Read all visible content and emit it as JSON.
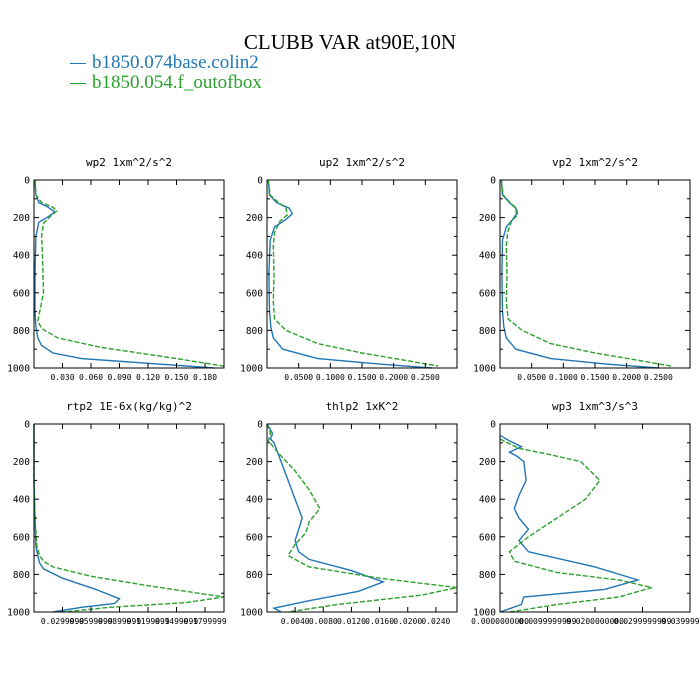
{
  "figure": {
    "title": "CLUBB VAR at90E,10N",
    "legend": [
      {
        "label": "b1850.074base.colin2",
        "color": "#1f77b4",
        "style": "solid"
      },
      {
        "label": "b1850.054.f_outofbox",
        "color": "#2ca02c",
        "style": "dashed"
      }
    ]
  },
  "chart_data": [
    {
      "type": "line",
      "title": "wp2  1xm^2/s^2",
      "ylim": [
        1000,
        0
      ],
      "yticks": [
        0,
        200,
        400,
        600,
        800,
        1000
      ],
      "xlim": [
        0,
        0.2
      ],
      "xticks": [
        0.03,
        0.06,
        0.09,
        0.12,
        0.15,
        0.18
      ],
      "xticklabels": [
        "0.030",
        "0.060",
        "0.090",
        "0.120",
        "0.150",
        "0.180"
      ],
      "series": [
        {
          "name": "b1850.074base.colin2",
          "color": "#1f77b4",
          "dashed": false,
          "x": [
            0.001,
            0.002,
            0.005,
            0.015,
            0.022,
            0.015,
            0.005,
            0.002,
            0.001,
            0.001,
            0.002,
            0.004,
            0.008,
            0.02,
            0.05,
            0.12,
            0.19
          ],
          "y": [
            0,
            80,
            120,
            145,
            170,
            195,
            225,
            300,
            500,
            700,
            780,
            840,
            880,
            920,
            950,
            975,
            1000
          ]
        },
        {
          "name": "b1850.054.f_outofbox",
          "color": "#2ca02c",
          "dashed": true,
          "x": [
            0.001,
            0.002,
            0.008,
            0.02,
            0.024,
            0.018,
            0.01,
            0.008,
            0.009,
            0.01,
            0.006,
            0.004,
            0.008,
            0.025,
            0.07,
            0.15,
            0.2
          ],
          "y": [
            0,
            80,
            120,
            145,
            165,
            190,
            230,
            300,
            400,
            600,
            700,
            750,
            790,
            840,
            890,
            950,
            990
          ]
        }
      ]
    },
    {
      "type": "line",
      "title": "up2  1xm^2/s^2",
      "ylim": [
        1000,
        0
      ],
      "yticks": [
        0,
        200,
        400,
        600,
        800,
        1000
      ],
      "xlim": [
        0,
        0.3
      ],
      "xticks": [
        0.05,
        0.1,
        0.15,
        0.2,
        0.25
      ],
      "xticklabels": [
        "0.0500",
        "0.1000",
        "0.1500",
        "0.2000",
        "0.2500"
      ],
      "series": [
        {
          "name": "b1850.074base.colin2",
          "color": "#1f77b4",
          "dashed": false,
          "x": [
            0.002,
            0.004,
            0.015,
            0.035,
            0.04,
            0.03,
            0.012,
            0.005,
            0.003,
            0.004,
            0.006,
            0.01,
            0.025,
            0.08,
            0.18,
            0.26
          ],
          "y": [
            0,
            80,
            120,
            150,
            180,
            210,
            250,
            320,
            500,
            700,
            780,
            840,
            900,
            950,
            980,
            1000
          ]
        },
        {
          "name": "b1850.054.f_outofbox",
          "color": "#2ca02c",
          "dashed": true,
          "x": [
            0.002,
            0.005,
            0.018,
            0.03,
            0.032,
            0.02,
            0.012,
            0.01,
            0.011,
            0.01,
            0.012,
            0.03,
            0.08,
            0.15,
            0.22,
            0.27
          ],
          "y": [
            0,
            80,
            120,
            150,
            185,
            220,
            280,
            350,
            500,
            650,
            740,
            800,
            870,
            920,
            960,
            990
          ]
        }
      ]
    },
    {
      "type": "line",
      "title": "vp2  1xm^2/s^2",
      "ylim": [
        1000,
        0
      ],
      "yticks": [
        0,
        200,
        400,
        600,
        800,
        1000
      ],
      "xlim": [
        0,
        0.3
      ],
      "xticks": [
        0.05,
        0.1,
        0.15,
        0.2,
        0.25
      ],
      "xticklabels": [
        "0.0500",
        "0.1000",
        "0.1500",
        "0.2000",
        "0.2500"
      ],
      "series": [
        {
          "name": "b1850.074base.colin2",
          "color": "#1f77b4",
          "dashed": false,
          "x": [
            0.002,
            0.004,
            0.015,
            0.025,
            0.026,
            0.02,
            0.01,
            0.004,
            0.003,
            0.004,
            0.006,
            0.01,
            0.025,
            0.08,
            0.17,
            0.25
          ],
          "y": [
            0,
            80,
            120,
            150,
            180,
            210,
            250,
            320,
            500,
            700,
            780,
            840,
            900,
            950,
            980,
            1000
          ]
        },
        {
          "name": "b1850.054.f_outofbox",
          "color": "#2ca02c",
          "dashed": true,
          "x": [
            0.002,
            0.005,
            0.016,
            0.026,
            0.028,
            0.018,
            0.012,
            0.01,
            0.011,
            0.01,
            0.013,
            0.035,
            0.08,
            0.15,
            0.22,
            0.27
          ],
          "y": [
            0,
            80,
            120,
            150,
            185,
            220,
            280,
            350,
            500,
            650,
            740,
            800,
            870,
            920,
            960,
            990
          ]
        }
      ]
    },
    {
      "type": "line",
      "title": "rtp2  1E-6x(kg/kg)^2",
      "ylim": [
        1000,
        0
      ],
      "yticks": [
        0,
        200,
        400,
        600,
        800,
        1000
      ],
      "xlim": [
        0,
        0.2
      ],
      "xticks": [
        0.0299999,
        0.0599999,
        0.0899999,
        0.1199999,
        0.1499999,
        0.1799999
      ],
      "xticklabels": [
        "0.0299999",
        "0.0599999",
        "0.0899999",
        "0.1199999",
        "0.1499999",
        "0.1799999"
      ],
      "series": [
        {
          "name": "b1850.074base.colin2",
          "color": "#1f77b4",
          "dashed": false,
          "x": [
            0.0,
            0.0,
            0.001,
            0.002,
            0.004,
            0.006,
            0.01,
            0.03,
            0.065,
            0.09,
            0.085,
            0.05,
            0.02
          ],
          "y": [
            0,
            300,
            500,
            650,
            700,
            740,
            770,
            820,
            880,
            930,
            955,
            975,
            1000
          ]
        },
        {
          "name": "b1850.054.f_outofbox",
          "color": "#2ca02c",
          "dashed": true,
          "x": [
            0.0,
            0.0,
            0.001,
            0.003,
            0.006,
            0.01,
            0.02,
            0.06,
            0.12,
            0.2,
            0.16,
            0.08,
            0.03
          ],
          "y": [
            0,
            300,
            500,
            650,
            700,
            730,
            760,
            810,
            860,
            920,
            950,
            975,
            1000
          ]
        }
      ]
    },
    {
      "type": "line",
      "title": "thlp2  1xK^2",
      "ylim": [
        1000,
        0
      ],
      "yticks": [
        0,
        200,
        400,
        600,
        800,
        1000
      ],
      "xlim": [
        0,
        0.027
      ],
      "xticks": [
        0.004,
        0.008,
        0.012,
        0.016,
        0.02,
        0.024
      ],
      "xticklabels": [
        "0.0040",
        "0.0080",
        "0.0120",
        "0.0160",
        "0.0200",
        "0.0240"
      ],
      "series": [
        {
          "name": "b1850.074base.colin2",
          "color": "#1f77b4",
          "dashed": false,
          "x": [
            0.0,
            0.0008,
            0.0005,
            0.001,
            0.0015,
            0.002,
            0.003,
            0.004,
            0.005,
            0.0045,
            0.004,
            0.0045,
            0.006,
            0.012,
            0.0165,
            0.013,
            0.006,
            0.001,
            0.002
          ],
          "y": [
            0,
            50,
            80,
            100,
            150,
            200,
            300,
            400,
            500,
            560,
            620,
            680,
            720,
            780,
            840,
            890,
            940,
            980,
            1000
          ]
        },
        {
          "name": "b1850.054.f_outofbox",
          "color": "#2ca02c",
          "dashed": true,
          "x": [
            0.0,
            0.0005,
            0.0002,
            0.0015,
            0.004,
            0.006,
            0.0075,
            0.006,
            0.0055,
            0.004,
            0.003,
            0.006,
            0.016,
            0.027,
            0.022,
            0.01,
            0.003
          ],
          "y": [
            0,
            50,
            90,
            150,
            250,
            350,
            450,
            520,
            580,
            640,
            700,
            760,
            820,
            870,
            910,
            960,
            1000
          ]
        }
      ]
    },
    {
      "type": "line",
      "title": "wp3  1xm^3/s^3",
      "ylim": [
        1000,
        0
      ],
      "yticks": [
        0,
        200,
        400,
        600,
        800,
        1000
      ],
      "xlim": [
        0,
        0.04
      ],
      "xticks": [
        0.0,
        0.01,
        0.02,
        0.03,
        0.04
      ],
      "xticklabels": [
        "0.0000000000",
        "0.0099999999",
        "0.0200000000",
        "0.0299999999",
        "0.0399999999"
      ],
      "series": [
        {
          "name": "b1850.074base.colin2",
          "color": "#1f77b4",
          "dashed": false,
          "x": [
            0.0,
            0.002,
            0.0045,
            0.002,
            0.0035,
            0.005,
            0.0055,
            0.004,
            0.003,
            0.004,
            0.006,
            0.004,
            0.006,
            0.02,
            0.029,
            0.022,
            0.005,
            0.0045,
            0.0
          ],
          "y": [
            60,
            90,
            120,
            150,
            170,
            200,
            300,
            380,
            450,
            500,
            560,
            620,
            680,
            760,
            830,
            880,
            920,
            960,
            1000
          ]
        },
        {
          "name": "b1850.054.f_outofbox",
          "color": "#2ca02c",
          "dashed": true,
          "x": [
            0.0,
            0.004,
            0.01,
            0.017,
            0.021,
            0.018,
            0.012,
            0.006,
            0.002,
            0.003,
            0.012,
            0.025,
            0.032,
            0.025,
            0.012,
            0.002
          ],
          "y": [
            80,
            130,
            160,
            200,
            300,
            400,
            500,
            600,
            680,
            730,
            790,
            830,
            870,
            920,
            960,
            1000
          ]
        }
      ]
    }
  ]
}
